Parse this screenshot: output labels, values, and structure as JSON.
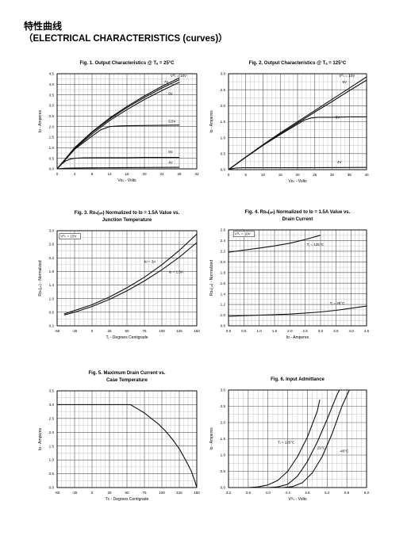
{
  "page": {
    "title_cn": "特性曲线",
    "title_en": "（ELECTRICAL CHARACTERISTICS (curves)）"
  },
  "chart_data": [
    {
      "id": "fig1",
      "type": "line",
      "title": [
        "Fig. 1. Output Characteristics @ Tₐ = 25°C"
      ],
      "xlabel": "Vᴅₛ - Volts",
      "ylabel": "Iᴅ - Amperes",
      "xlim": [
        0,
        32
      ],
      "ylim": [
        0,
        4.5
      ],
      "xticks": [
        0,
        4,
        8,
        12,
        16,
        20,
        24,
        28,
        32
      ],
      "yticks": [
        0,
        0.5,
        1.0,
        1.5,
        2.0,
        2.5,
        3.0,
        3.5,
        4.0,
        4.5
      ],
      "ydec": 1,
      "grid": true,
      "legend": "none",
      "series": [
        {
          "name": "VGS = 10V",
          "x": [
            0,
            4,
            8,
            12,
            16,
            20,
            24,
            28
          ],
          "y": [
            0,
            1.0,
            1.75,
            2.4,
            2.95,
            3.45,
            3.9,
            4.3
          ]
        },
        {
          "name": "7V",
          "x": [
            0,
            4,
            8,
            12,
            16,
            20,
            24,
            28
          ],
          "y": [
            0,
            0.98,
            1.72,
            2.35,
            2.9,
            3.38,
            3.82,
            4.22
          ]
        },
        {
          "name": "6V",
          "x": [
            0,
            4,
            8,
            12,
            16,
            20,
            24,
            28
          ],
          "y": [
            0,
            0.95,
            1.65,
            2.28,
            2.8,
            3.28,
            3.7,
            4.1
          ]
        },
        {
          "name": "5.5V",
          "x": [
            0,
            4,
            8,
            10,
            12,
            14,
            16,
            20,
            24,
            28
          ],
          "y": [
            0,
            0.92,
            1.55,
            1.85,
            2.0,
            2.03,
            2.04,
            2.05,
            2.06,
            2.07
          ]
        },
        {
          "name": "5V",
          "x": [
            0,
            1,
            2,
            3,
            4,
            6,
            10,
            16,
            20,
            28
          ],
          "y": [
            0,
            0.22,
            0.38,
            0.46,
            0.5,
            0.52,
            0.53,
            0.53,
            0.54,
            0.54
          ]
        },
        {
          "name": "4V",
          "x": [
            0,
            1,
            2,
            4,
            8,
            16,
            28
          ],
          "y": [
            0,
            0.02,
            0.03,
            0.04,
            0.05,
            0.06,
            0.07
          ]
        }
      ],
      "labels": [
        {
          "text": "Vᴳₛ = 10V",
          "x": 26,
          "y": 4.35
        },
        {
          "text": "7V",
          "x": 24.5,
          "y": 4.05
        },
        {
          "text": "6V",
          "x": 25.5,
          "y": 3.5
        },
        {
          "text": "5.5V",
          "x": 25.5,
          "y": 2.2
        },
        {
          "text": "5V",
          "x": 25.5,
          "y": 0.75
        },
        {
          "text": "4V",
          "x": 25.5,
          "y": 0.25
        }
      ]
    },
    {
      "id": "fig2",
      "type": "line",
      "title": [
        "Fig. 2. Output Characteristics @ Tₐ = 125°C"
      ],
      "xlabel": "Vᴅₛ - Volts",
      "ylabel": "Iᴅ - Amperes",
      "xlim": [
        0,
        40
      ],
      "ylim": [
        0,
        3.0
      ],
      "xticks": [
        0,
        5,
        10,
        15,
        20,
        25,
        30,
        35,
        40
      ],
      "yticks": [
        0,
        0.5,
        1.0,
        1.5,
        2.0,
        2.5,
        3.0
      ],
      "ydec": 1,
      "grid": true,
      "legend": "none",
      "series": [
        {
          "name": "VGS = 10V",
          "x": [
            0,
            5,
            10,
            15,
            20,
            25,
            30,
            35,
            40
          ],
          "y": [
            0,
            0.4,
            0.78,
            1.15,
            1.5,
            1.85,
            2.2,
            2.55,
            2.9
          ]
        },
        {
          "name": "6V",
          "x": [
            0,
            5,
            10,
            15,
            20,
            25,
            30,
            35,
            40
          ],
          "y": [
            0,
            0.39,
            0.76,
            1.12,
            1.46,
            1.8,
            2.13,
            2.47,
            2.8
          ]
        },
        {
          "name": "5V",
          "x": [
            0,
            5,
            10,
            15,
            20,
            22,
            24,
            26,
            30,
            35,
            40
          ],
          "y": [
            0,
            0.39,
            0.76,
            1.1,
            1.42,
            1.55,
            1.62,
            1.64,
            1.64,
            1.65,
            1.65
          ]
        },
        {
          "name": "4V",
          "x": [
            0,
            1,
            2,
            4,
            10,
            20,
            40
          ],
          "y": [
            0,
            0.03,
            0.05,
            0.06,
            0.06,
            0.06,
            0.07
          ]
        }
      ],
      "labels": [
        {
          "text": "Vᴳₛ = 10V",
          "x": 32,
          "y": 2.9
        },
        {
          "text": "6V",
          "x": 33,
          "y": 2.7
        },
        {
          "text": "5V",
          "x": 31,
          "y": 1.6
        },
        {
          "text": "4V",
          "x": 31.5,
          "y": 0.2
        }
      ]
    },
    {
      "id": "fig3",
      "type": "line",
      "title": [
        "Fig. 3. Rᴅₛ(ₒₙ) Normalized to Iᴅ = 1.5A Value vs.",
        "Junction Temperature"
      ],
      "xlabel": "Tⱼ - Degrees Centigrade",
      "ylabel": "Rᴅₛ(ₒₙ) - Normalized",
      "xlim": [
        -50,
        150
      ],
      "ylim": [
        0.2,
        3.0
      ],
      "xticks": [
        -50,
        -25,
        0,
        25,
        50,
        75,
        100,
        125,
        150
      ],
      "yticks": [
        0.2,
        0.6,
        1.0,
        1.4,
        1.8,
        2.2,
        2.6,
        3.0
      ],
      "ydec": 1,
      "grid": true,
      "legend": "none",
      "series": [
        {
          "name": "ID = 3A",
          "x": [
            -40,
            -25,
            0,
            25,
            50,
            75,
            100,
            125,
            150
          ],
          "y": [
            0.55,
            0.65,
            0.82,
            1.05,
            1.32,
            1.63,
            2.0,
            2.42,
            2.9
          ]
        },
        {
          "name": "ID = 1.5A",
          "x": [
            -40,
            -25,
            0,
            25,
            50,
            75,
            100,
            125,
            150
          ],
          "y": [
            0.52,
            0.6,
            0.77,
            0.98,
            1.23,
            1.52,
            1.85,
            2.22,
            2.65
          ]
        }
      ],
      "labels": [
        {
          "text": "Vᴳₛ = 10V",
          "x": -45,
          "y": 2.8,
          "boxed": true
        },
        {
          "text": "Iᴅ = 3A",
          "x": 75,
          "y": 2.05
        },
        {
          "text": "Iᴅ = 1.5A",
          "x": 110,
          "y": 1.75
        }
      ]
    },
    {
      "id": "fig4",
      "type": "line",
      "title": [
        "Fig. 4. Rᴅₛ(ₒₙ) Normalized to Iᴅ = 1.5A Value vs.",
        "Drain Current"
      ],
      "xlabel": "Iᴅ - Amperes",
      "ylabel": "Rᴅₛ(ₒₙ) - Normalized",
      "xlim": [
        0,
        4.5
      ],
      "ylim": [
        0.8,
        2.6
      ],
      "xticks": [
        0,
        0.5,
        1.0,
        1.5,
        2.0,
        2.5,
        3.0,
        3.5,
        4.0,
        4.5
      ],
      "yticks": [
        0.8,
        1.0,
        1.2,
        1.4,
        1.6,
        1.8,
        2.0,
        2.2,
        2.4,
        2.6
      ],
      "ydec": 1,
      "xdec": 1,
      "grid": true,
      "legend": "none",
      "series": [
        {
          "name": "TJ = 125°C",
          "x": [
            0,
            0.5,
            1.0,
            1.5,
            2.0,
            2.5,
            3.0
          ],
          "y": [
            2.18,
            2.22,
            2.26,
            2.3,
            2.35,
            2.42,
            2.5
          ]
        },
        {
          "name": "TJ = 25°C",
          "x": [
            0,
            0.5,
            1.0,
            1.5,
            2.0,
            2.5,
            3.0,
            3.5,
            4.0,
            4.5
          ],
          "y": [
            0.98,
            0.99,
            1.0,
            1.01,
            1.02,
            1.04,
            1.06,
            1.09,
            1.13,
            1.17
          ]
        }
      ],
      "labels": [
        {
          "text": "Vᴳₛ = 10V",
          "x": 0.2,
          "y": 2.5,
          "boxed": true
        },
        {
          "text": "Tⱼ = 125°C",
          "x": 2.55,
          "y": 2.3
        },
        {
          "text": "Tⱼ = 25°C",
          "x": 3.3,
          "y": 1.2
        }
      ]
    },
    {
      "id": "fig5",
      "type": "line",
      "title": [
        "Fig. 5. Maximum Drain Current vs.",
        "Case Temperature"
      ],
      "xlabel": "Tᴄ - Degrees Centigrade",
      "ylabel": "Iᴅ - Amperes",
      "xlim": [
        -50,
        150
      ],
      "ylim": [
        0,
        3.5
      ],
      "xticks": [
        -50,
        -25,
        0,
        25,
        50,
        75,
        100,
        125,
        150
      ],
      "yticks": [
        0,
        0.5,
        1.0,
        1.5,
        2.0,
        2.5,
        3.0,
        3.5
      ],
      "ydec": 1,
      "grid": true,
      "legend": "none",
      "series": [
        {
          "name": "max",
          "x": [
            -50,
            55,
            65,
            75,
            85,
            95,
            105,
            115,
            125,
            135,
            142,
            147,
            150
          ],
          "y": [
            3.0,
            3.0,
            2.85,
            2.7,
            2.5,
            2.3,
            2.05,
            1.75,
            1.4,
            0.95,
            0.6,
            0.25,
            0
          ]
        }
      ],
      "labels": []
    },
    {
      "id": "fig6",
      "type": "line",
      "title": [
        "Fig. 6. Input Admittance"
      ],
      "xlabel": "Vᴳₛ - Volts",
      "ylabel": "Iᴅ - Amperes",
      "xlim": [
        3.2,
        6.0
      ],
      "ylim": [
        0,
        3.0
      ],
      "xticks": [
        3.2,
        3.6,
        4.0,
        4.4,
        4.8,
        5.2,
        5.6,
        6.0
      ],
      "yticks": [
        0,
        0.5,
        1.0,
        1.5,
        2.0,
        2.5,
        3.0
      ],
      "ydec": 1,
      "xdec": 1,
      "grid": true,
      "legend": "none",
      "series": [
        {
          "name": "TJ = 125°C",
          "x": [
            3.6,
            3.8,
            4.0,
            4.2,
            4.4,
            4.6,
            4.8,
            5.0,
            5.05
          ],
          "y": [
            0.0,
            0.02,
            0.08,
            0.22,
            0.5,
            0.95,
            1.55,
            2.35,
            2.7
          ]
        },
        {
          "name": "25°C",
          "x": [
            4.0,
            4.2,
            4.4,
            4.6,
            4.8,
            5.0,
            5.2,
            5.4,
            5.45
          ],
          "y": [
            0.0,
            0.02,
            0.1,
            0.35,
            0.8,
            1.4,
            2.1,
            2.85,
            3.0
          ]
        },
        {
          "name": "-40°C",
          "x": [
            4.3,
            4.5,
            4.7,
            4.9,
            5.1,
            5.3,
            5.5,
            5.65
          ],
          "y": [
            0.0,
            0.03,
            0.15,
            0.45,
            0.95,
            1.65,
            2.5,
            3.0
          ]
        }
      ],
      "labels": [
        {
          "text": "Tⱼ = 125°C",
          "x": 4.2,
          "y": 1.35
        },
        {
          "text": "25°C",
          "x": 5.0,
          "y": 1.18
        },
        {
          "text": "-40°C",
          "x": 5.45,
          "y": 1.08
        }
      ]
    }
  ]
}
